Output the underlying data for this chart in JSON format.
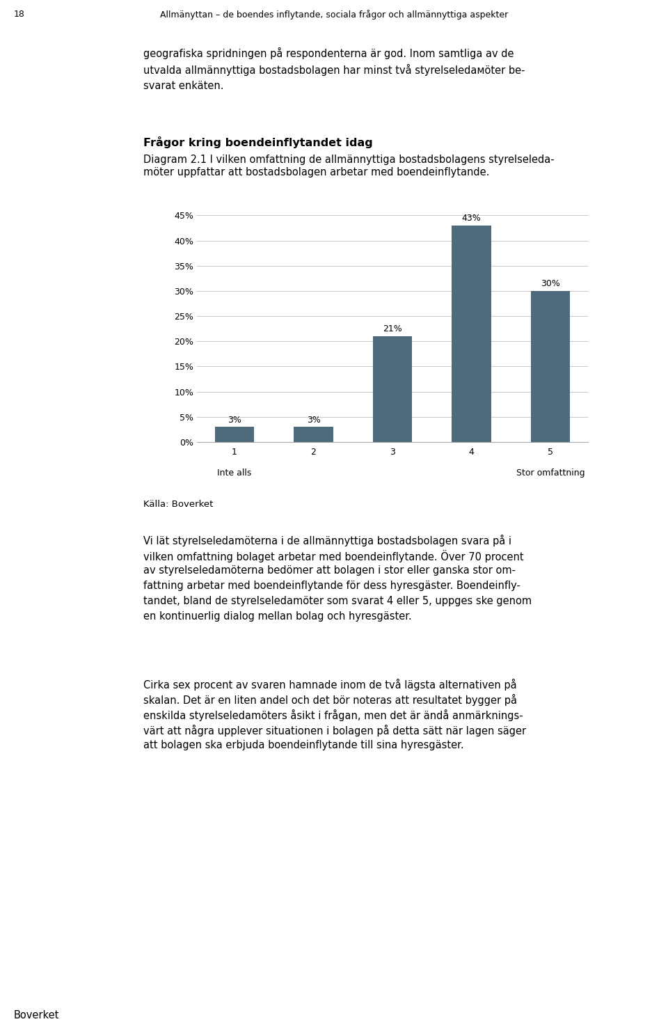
{
  "page_number": "18",
  "header_text": "Allmänyttan – de boendes inflytande, sociala frågor och allmännyttiga aspekter",
  "intro_text": "geografiska spridningen på respondenterna är god. Inom samtliga av de\nutvalda allmännyttiga bostadsbolagen har minst två styrelseledaмöter be-\nsvarat enkäten.",
  "section_title": "Frågor kring boendeinflytandet idag",
  "diagram_caption_line1": "Diagram 2.1 I vilken omfattning de allmännyttiga bostadsbolagens styrelseleda-",
  "diagram_caption_line2": "möter uppfattar att bostadsbolagen arbetar med boendeinflytande.",
  "categories": [
    "1",
    "2",
    "3",
    "4",
    "5"
  ],
  "values": [
    0.03,
    0.03,
    0.21,
    0.43,
    0.3
  ],
  "bar_color": "#4d6b7c",
  "bar_labels": [
    "3%",
    "3%",
    "21%",
    "43%",
    "30%"
  ],
  "y_ticks": [
    0.0,
    0.05,
    0.1,
    0.15,
    0.2,
    0.25,
    0.3,
    0.35,
    0.4,
    0.45
  ],
  "y_tick_labels": [
    "0%",
    "5%",
    "10%",
    "15%",
    "20%",
    "25%",
    "30%",
    "35%",
    "40%",
    "45%"
  ],
  "ylim": [
    0,
    0.47
  ],
  "label_inte_alls": "Inte alls",
  "label_stor": "Stor omfattning",
  "source_text": "Källa: Boverket",
  "body_text_1_lines": [
    "Vi lät styrelseledamöterna i de allmännyttiga bostadsbolagen svara på i",
    "vilken omfattning bolaget arbetar med boendeinflytande. Över 70 procent",
    "av styrelseledamöterna bedömer att bolagen i stor eller ganska stor om-",
    "fattning arbetar med boendeinflytande för dess hyresgäster. Boendeinfly-",
    "tandet, bland de styrelseledamöter som svarat 4 eller 5, uppges ske genom",
    "en kontinuerlig dialog mellan bolag och hyresgäster."
  ],
  "body_text_2_lines": [
    "Cirka sex procent av svaren hamnade inom de två lägsta alternativen på",
    "skalan. Det är en liten andel och det bör noteras att resultatet bygger på",
    "enskilda styrelseledamöters åsikt i frågan, men det är ändå anmärknings-",
    "värt att några upplever situationen i bolagen på detta sätt när lagen säger",
    "att bolagen ska erbjuda boendeinflytande till sina hyresgäster."
  ],
  "footer_text": "Boverket",
  "background_color": "#ffffff",
  "grid_color": "#c8c8c8",
  "text_color": "#000000",
  "bar_label_fontsize": 9,
  "axis_tick_fontsize": 9,
  "body_fontsize": 10.5,
  "caption_fontsize": 10.5,
  "title_fontsize": 11.5,
  "header_fontsize": 9,
  "source_fontsize": 9.5
}
